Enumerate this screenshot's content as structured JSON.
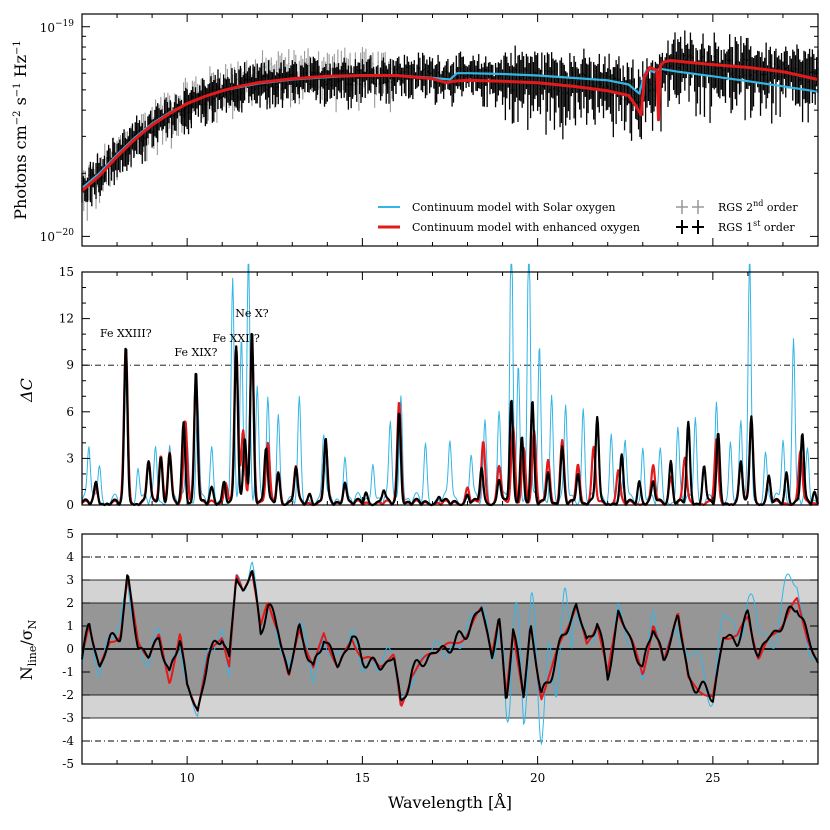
{
  "chart_data": [
    {
      "type": "line",
      "panel": "spectrum",
      "title": "",
      "ylabel_parts": [
        "Photons cm",
        "−2",
        " s",
        "−1",
        " Hz",
        "−1"
      ],
      "yscale": "log",
      "ylim": [
        9e-21,
        1.15e-19
      ],
      "xlim": [
        7,
        28
      ],
      "yticks": [
        {
          "value": 1e-20,
          "base": "10",
          "exp": "−20"
        },
        {
          "value": 1e-19,
          "base": "10",
          "exp": "−19"
        }
      ],
      "series": [
        {
          "name": "RGS 2nd order",
          "color": "#999999",
          "x": [
            7,
            7.5,
            8,
            8.5,
            9,
            9.5,
            10,
            10.5,
            11,
            11.5,
            12,
            12.5,
            13,
            13.5,
            14,
            15,
            16
          ],
          "y": [
            1.6e-20,
            1.95e-20,
            2.4e-20,
            2.9e-20,
            3.4e-20,
            3.9e-20,
            4.4e-20,
            4.8e-20,
            5.2e-20,
            5.5e-20,
            5.7e-20,
            5.9e-20,
            6e-20,
            6.1e-20,
            6.1e-20,
            6e-20,
            5.9e-20
          ]
        },
        {
          "name": "RGS 1st order",
          "color": "#000000",
          "x": [
            7,
            8,
            9,
            10,
            11,
            12,
            13,
            14,
            15,
            16,
            17,
            18,
            19,
            20,
            21,
            22,
            23,
            24,
            25,
            26,
            27,
            28
          ],
          "y": [
            1.7e-20,
            2.4e-20,
            3.3e-20,
            4.2e-20,
            4.9e-20,
            5.3e-20,
            5.5e-20,
            5.7e-20,
            5.8e-20,
            5.9e-20,
            5.9e-20,
            5.8e-20,
            5.7e-20,
            5.6e-20,
            5.4e-20,
            5.2e-20,
            4.8e-20,
            6.7e-20,
            6.5e-20,
            6.2e-20,
            5.9e-20,
            5.6e-20
          ]
        },
        {
          "name": "Continuum model with Solar oxygen",
          "color": "#33b5e5",
          "x": [
            7,
            7.5,
            8,
            8.5,
            9,
            9.5,
            10,
            10.5,
            11,
            11.5,
            12,
            13,
            14,
            15,
            16,
            17,
            17.5,
            17.7,
            18,
            19,
            20,
            21,
            22,
            22.6,
            22.9,
            23.0,
            23.1,
            23.3,
            23.5,
            24,
            25,
            26,
            27,
            28
          ],
          "y": [
            1.7e-20,
            2e-20,
            2.45e-20,
            2.95e-20,
            3.45e-20,
            3.9e-20,
            4.3e-20,
            4.65e-20,
            4.95e-20,
            5.15e-20,
            5.35e-20,
            5.6e-20,
            5.75e-20,
            5.85e-20,
            5.85e-20,
            5.7e-20,
            5.6e-20,
            6e-20,
            6e-20,
            5.95e-20,
            5.85e-20,
            5.7e-20,
            5.55e-20,
            5.3e-20,
            4.8e-20,
            5.6e-20,
            6.2e-20,
            6.1e-20,
            6.3e-20,
            6.1e-20,
            5.8e-20,
            5.5e-20,
            5.2e-20,
            4.9e-20
          ]
        },
        {
          "name": "Continuum model with enhanced oxygen",
          "color": "#e31a1c",
          "x": [
            7,
            7.5,
            8,
            8.5,
            9,
            9.5,
            10,
            10.5,
            11,
            11.5,
            12,
            13,
            14,
            15,
            16,
            17,
            17.4,
            17.6,
            18,
            19,
            20,
            21,
            22,
            22.6,
            22.8,
            22.95,
            23.05,
            23.2,
            23.4,
            23.45,
            23.5,
            23.6,
            23.8,
            24,
            25,
            26,
            27,
            28
          ],
          "y": [
            1.65e-20,
            1.95e-20,
            2.4e-20,
            2.9e-20,
            3.4e-20,
            3.85e-20,
            4.3e-20,
            4.65e-20,
            4.95e-20,
            5.2e-20,
            5.4e-20,
            5.65e-20,
            5.8e-20,
            5.85e-20,
            5.85e-20,
            5.65e-20,
            5.4e-20,
            5.5e-20,
            5.55e-20,
            5.5e-20,
            5.4e-20,
            5.2e-20,
            4.95e-20,
            4.7e-20,
            4.2e-20,
            3.8e-20,
            5.8e-20,
            6.4e-20,
            6.2e-20,
            3.6e-20,
            6.5e-20,
            6.8e-20,
            6.9e-20,
            6.85e-20,
            6.6e-20,
            6.4e-20,
            6.1e-20,
            5.6e-20
          ]
        }
      ],
      "legend": [
        {
          "label": "Continuum model with Solar oxygen",
          "color": "#33b5e5",
          "kind": "line"
        },
        {
          "label": "Continuum model with enhanced oxygen",
          "color": "#e31a1c",
          "kind": "line"
        },
        {
          "label_main": "RGS 2",
          "label_sup": "nd",
          "label_tail": " order",
          "color": "#999999",
          "kind": "cross"
        },
        {
          "label_main": "RGS 1",
          "label_sup": "st",
          "label_tail": " order",
          "color": "#000000",
          "kind": "cross"
        }
      ]
    },
    {
      "type": "line",
      "panel": "delta_c",
      "ylabel": "ΔC",
      "xlim": [
        7,
        28
      ],
      "ylim": [
        0,
        15
      ],
      "yticks": [
        0,
        3,
        6,
        9,
        12,
        15
      ],
      "reference_line": 9,
      "peaks": {
        "black": [
          [
            7.4,
            1.2
          ],
          [
            8.25,
            10.0
          ],
          [
            8.9,
            2.8
          ],
          [
            9.25,
            3.0
          ],
          [
            9.5,
            3.2
          ],
          [
            9.9,
            5.0
          ],
          [
            10.25,
            8.6
          ],
          [
            10.7,
            0.8
          ],
          [
            11.05,
            1.5
          ],
          [
            11.4,
            10.2
          ],
          [
            11.65,
            4.2
          ],
          [
            11.85,
            11.2
          ],
          [
            12.25,
            3.6
          ],
          [
            12.6,
            1.9
          ],
          [
            13.1,
            2.3
          ],
          [
            13.5,
            0.6
          ],
          [
            13.95,
            4.1
          ],
          [
            14.5,
            1.4
          ],
          [
            15.1,
            0.6
          ],
          [
            15.6,
            0.8
          ],
          [
            16.05,
            5.9
          ],
          [
            17.2,
            0.4
          ],
          [
            18.0,
            0.5
          ],
          [
            18.4,
            2.2
          ],
          [
            18.9,
            1.6
          ],
          [
            19.25,
            6.6
          ],
          [
            19.55,
            4.4
          ],
          [
            19.85,
            6.4
          ],
          [
            20.3,
            2.1
          ],
          [
            20.7,
            3.4
          ],
          [
            21.15,
            2.0
          ],
          [
            21.7,
            5.6
          ],
          [
            22.4,
            2.9
          ],
          [
            22.9,
            1.5
          ],
          [
            23.3,
            1.3
          ],
          [
            23.8,
            2.8
          ],
          [
            24.3,
            5.0
          ],
          [
            24.75,
            2.5
          ],
          [
            25.15,
            4.3
          ],
          [
            25.8,
            2.6
          ],
          [
            26.1,
            5.6
          ],
          [
            26.6,
            1.6
          ],
          [
            27.1,
            2.0
          ],
          [
            27.55,
            4.5
          ],
          [
            27.9,
            0.7
          ]
        ],
        "red": [
          [
            7.4,
            0.9
          ],
          [
            8.25,
            10.0
          ],
          [
            8.9,
            2.8
          ],
          [
            9.25,
            3.1
          ],
          [
            9.5,
            3.3
          ],
          [
            9.95,
            5.3
          ],
          [
            10.25,
            8.0
          ],
          [
            11.1,
            1.4
          ],
          [
            11.4,
            10.2
          ],
          [
            11.6,
            4.6
          ],
          [
            11.85,
            10.3
          ],
          [
            12.3,
            3.8
          ],
          [
            12.6,
            2.0
          ],
          [
            13.1,
            2.4
          ],
          [
            13.95,
            3.9
          ],
          [
            14.5,
            1.2
          ],
          [
            16.05,
            6.6
          ],
          [
            18.0,
            1.0
          ],
          [
            18.45,
            3.9
          ],
          [
            18.9,
            2.5
          ],
          [
            19.3,
            4.8
          ],
          [
            19.6,
            3.6
          ],
          [
            19.9,
            4.5
          ],
          [
            20.3,
            2.9
          ],
          [
            20.7,
            3.9
          ],
          [
            21.15,
            2.6
          ],
          [
            21.6,
            3.5
          ],
          [
            22.3,
            2.1
          ],
          [
            23.3,
            2.4
          ],
          [
            23.8,
            1.8
          ],
          [
            24.2,
            3.0
          ],
          [
            25.1,
            4.0
          ],
          [
            25.8,
            2.5
          ],
          [
            26.1,
            5.2
          ],
          [
            26.6,
            1.5
          ],
          [
            27.5,
            3.4
          ]
        ],
        "blue": [
          [
            7.2,
            3.5
          ],
          [
            7.5,
            2.5
          ],
          [
            8.25,
            7.5
          ],
          [
            8.6,
            2.3
          ],
          [
            9.1,
            3.3
          ],
          [
            9.5,
            3.6
          ],
          [
            10.0,
            4.0
          ],
          [
            10.3,
            6.5
          ],
          [
            10.7,
            3.0
          ],
          [
            11.3,
            14.0
          ],
          [
            11.55,
            10.0
          ],
          [
            11.75,
            16.0
          ],
          [
            12.0,
            7.5
          ],
          [
            12.3,
            6.4
          ],
          [
            12.6,
            5.5
          ],
          [
            13.2,
            6.2
          ],
          [
            13.9,
            4.5
          ],
          [
            14.5,
            3.0
          ],
          [
            15.3,
            2.6
          ],
          [
            15.8,
            5.0
          ],
          [
            16.1,
            7.0
          ],
          [
            16.8,
            3.5
          ],
          [
            17.5,
            4.0
          ],
          [
            18.1,
            3.0
          ],
          [
            18.5,
            5.0
          ],
          [
            18.9,
            6.0
          ],
          [
            19.25,
            18.0
          ],
          [
            19.45,
            9.0
          ],
          [
            19.75,
            18.0
          ],
          [
            20.05,
            10.0
          ],
          [
            20.4,
            7.0
          ],
          [
            20.8,
            6.0
          ],
          [
            21.3,
            6.0
          ],
          [
            21.7,
            5.0
          ],
          [
            22.1,
            4.5
          ],
          [
            22.5,
            4.0
          ],
          [
            23.0,
            3.5
          ],
          [
            23.5,
            3.0
          ],
          [
            24.0,
            4.5
          ],
          [
            24.5,
            5.5
          ],
          [
            25.1,
            6.0
          ],
          [
            25.5,
            4.0
          ],
          [
            25.8,
            5.0
          ],
          [
            26.05,
            15.5
          ],
          [
            26.5,
            3.0
          ],
          [
            27.0,
            4.0
          ],
          [
            27.3,
            10.5
          ],
          [
            27.7,
            3.0
          ]
        ]
      },
      "annotations": [
        {
          "text": "Fe XXIII?",
          "x": 8.25
        },
        {
          "text": "Fe XIX?",
          "x": 10.25
        },
        {
          "text": "Fe XXII?",
          "x": 11.4
        },
        {
          "text": "Ne X?",
          "x": 11.85
        }
      ]
    },
    {
      "type": "line",
      "panel": "significance",
      "ylabel_main": "N",
      "ylabel_sub1": "line",
      "ylabel_mid": "/σ",
      "ylabel_sub2": "N",
      "xlabel": "Wavelength [Å]",
      "xlim": [
        7,
        28
      ],
      "ylim": [
        -5,
        5
      ],
      "yticks": [
        -5,
        -4,
        -3,
        -2,
        -1,
        0,
        1,
        2,
        3,
        4,
        5
      ],
      "xticks": [
        10,
        15,
        20,
        25
      ],
      "bands": [
        {
          "from": -3,
          "to": 3,
          "color": "#d3d3d3"
        },
        {
          "from": -2,
          "to": 2,
          "color": "#969696"
        }
      ],
      "reference_lines": [
        -4,
        4
      ],
      "black_keypoints": [
        [
          7,
          -0.5
        ],
        [
          7.2,
          1.1
        ],
        [
          7.5,
          -0.8
        ],
        [
          7.8,
          0.4
        ],
        [
          8.1,
          0.7
        ],
        [
          8.3,
          3.0
        ],
        [
          8.6,
          0.2
        ],
        [
          8.9,
          -0.4
        ],
        [
          9.2,
          0.6
        ],
        [
          9.5,
          -1.3
        ],
        [
          9.8,
          0.7
        ],
        [
          10.0,
          -1.7
        ],
        [
          10.3,
          -2.7
        ],
        [
          10.6,
          -0.4
        ],
        [
          11.0,
          0.7
        ],
        [
          11.2,
          -0.6
        ],
        [
          11.4,
          3.2
        ],
        [
          11.6,
          2.5
        ],
        [
          11.85,
          3.4
        ],
        [
          12.1,
          0.8
        ],
        [
          12.3,
          1.9
        ],
        [
          12.6,
          0.9
        ],
        [
          12.9,
          -1.2
        ],
        [
          13.2,
          1.0
        ],
        [
          13.6,
          -1.0
        ],
        [
          13.9,
          0.6
        ],
        [
          14.3,
          -0.8
        ],
        [
          14.7,
          0.6
        ],
        [
          15.0,
          -0.4
        ],
        [
          15.5,
          -0.8
        ],
        [
          15.9,
          -0.3
        ],
        [
          16.1,
          -2.5
        ],
        [
          16.4,
          -1.0
        ],
        [
          16.9,
          -0.3
        ],
        [
          17.6,
          0.2
        ],
        [
          18.0,
          0.8
        ],
        [
          18.4,
          1.8
        ],
        [
          18.7,
          -0.2
        ],
        [
          18.9,
          1.2
        ],
        [
          19.1,
          -2.2
        ],
        [
          19.3,
          0.9
        ],
        [
          19.6,
          -2.0
        ],
        [
          19.8,
          1.1
        ],
        [
          20.1,
          -2.1
        ],
        [
          20.4,
          -1.0
        ],
        [
          20.7,
          0.4
        ],
        [
          21.1,
          1.9
        ],
        [
          21.4,
          0.3
        ],
        [
          21.7,
          1.2
        ],
        [
          22.0,
          -1.2
        ],
        [
          22.3,
          1.5
        ],
        [
          22.7,
          0.3
        ],
        [
          23.0,
          -1.0
        ],
        [
          23.3,
          1.2
        ],
        [
          23.6,
          -0.7
        ],
        [
          24.0,
          1.6
        ],
        [
          24.3,
          -1.4
        ],
        [
          24.7,
          -1.7
        ],
        [
          25.0,
          -2.1
        ],
        [
          25.3,
          0.5
        ],
        [
          25.7,
          0.4
        ],
        [
          26.0,
          1.4
        ],
        [
          26.3,
          -0.3
        ],
        [
          26.6,
          0.5
        ],
        [
          27.0,
          1.1
        ],
        [
          27.4,
          2.0
        ],
        [
          27.7,
          0.5
        ],
        [
          28.0,
          -0.6
        ]
      ]
    }
  ]
}
